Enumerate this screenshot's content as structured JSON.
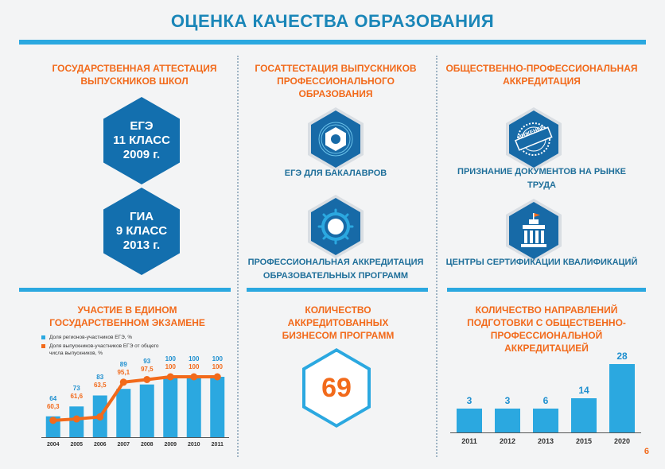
{
  "title": "ОЦЕНКА КАЧЕСТВА ОБРАЗОВАНИЯ",
  "page_number": "6",
  "colors": {
    "accent_blue": "#2ba8e0",
    "dark_blue": "#136fae",
    "orange": "#f26a1b"
  },
  "col1": {
    "heading": "ГОСУДАРСТВЕННАЯ АТТЕСТАЦИЯ ВЫПУСКНИКОВ ШКОЛ",
    "hex1": {
      "line1": "ЕГЭ",
      "line2": "11 КЛАСС",
      "line3": "2009 г."
    },
    "hex2": {
      "line1": "ГИА",
      "line2": "9 КЛАСС",
      "line3": "2013 г."
    }
  },
  "col2": {
    "heading": "ГОСАТТЕСТАЦИЯ ВЫПУСКНИКОВ ПРОФЕССИОНАЛЬНОГО ОБРАЗОВАНИЯ",
    "item1": {
      "icon": "nut-icon",
      "label": "ЕГЭ ДЛЯ БАКАЛАВРОВ"
    },
    "item2": {
      "icon": "gear-icon",
      "label": "ПРОФЕССИОНАЛЬНАЯ АККРЕДИТАЦИЯ ОБРАЗОВАТЕЛЬНЫХ ПРОГРАММ"
    }
  },
  "col3": {
    "heading": "ОБЩЕСТВЕННО-ПРОФЕССИОНАЛЬНАЯ АККРЕДИТАЦИЯ",
    "item1": {
      "icon": "engineer-stamp-icon",
      "stamp_text": "ИНЖЕНЕР",
      "label": "ПРИЗНАНИЕ ДОКУМЕНТОВ НА РЫНКЕ ТРУДА"
    },
    "item2": {
      "icon": "building-icon",
      "label": "ЦЕНТРЫ СЕРТИФИКАЦИИ КВАЛИФИКАЦИЙ"
    }
  },
  "panel1": {
    "heading": "УЧАСТИЕ В ЕДИНОМ ГОСУДАРСТВЕННОМ ЭКЗАМЕНЕ",
    "legend": [
      "Доля регионов-участников ЕГЭ, %",
      "Доля выпускников-участников ЕГЭ от общего числа выпускников, %"
    ]
  },
  "panel2": {
    "heading": "КОЛИЧЕСТВО АККРЕДИТОВАННЫХ БИЗНЕСОМ ПРОГРАММ",
    "value": "69"
  },
  "panel3": {
    "heading": "КОЛИЧЕСТВО НАПРАВЛЕНИЙ ПОДГОТОВКИ С ОБЩЕСТВЕННО-ПРОФЕССИОНАЛЬНОЙ АККРЕДИТАЦИЕЙ"
  },
  "chart_data": [
    {
      "type": "bar",
      "categories": [
        "2004",
        "2005",
        "2006",
        "2007",
        "2008",
        "2009",
        "2010",
        "2011"
      ],
      "series": [
        {
          "name": "Доля регионов-участников ЕГЭ, %",
          "type": "bar",
          "color": "#2ba8e0",
          "values": [
            64,
            73,
            83,
            89,
            93,
            100,
            100,
            100
          ],
          "labels": [
            "64",
            "73",
            "83",
            "89",
            "93",
            "100",
            "100",
            "100"
          ]
        },
        {
          "name": "Доля выпускников-участников ЕГЭ от общего числа выпускников, %",
          "type": "line",
          "color": "#f26a1b",
          "values": [
            60.3,
            61.6,
            63.5,
            95.1,
            97.5,
            100,
            100,
            100
          ],
          "labels": [
            "60,3",
            "61,6",
            "63,5",
            "95,1",
            "97,5",
            "100",
            "100",
            "100"
          ]
        }
      ],
      "ylim": [
        45,
        100
      ]
    },
    {
      "type": "bar",
      "categories": [
        "2011",
        "2012",
        "2013",
        "2015",
        "2020"
      ],
      "values": [
        3,
        3,
        6,
        14,
        28
      ],
      "ylim": [
        0,
        28
      ]
    }
  ]
}
